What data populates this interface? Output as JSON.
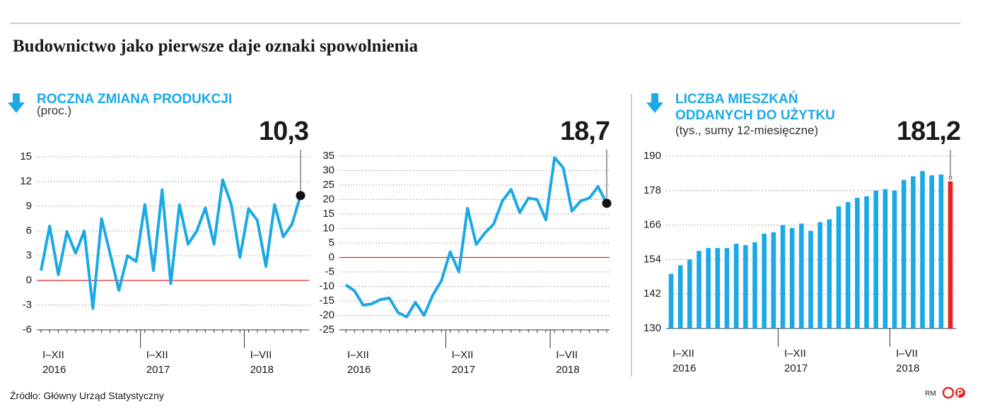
{
  "title": "Budownictwo jako pierwsze daje oznaki spowolnienia",
  "source": "Źródło: Główny Urząd Statystyczny",
  "credit": "RM",
  "chart_data": [
    {
      "type": "line",
      "title": [
        "ROCZNA ZMIANA PRODUKCJI"
      ],
      "subtitle": "(proc.)",
      "categories": [
        {
          "period": "I–XII",
          "year": "2016"
        },
        null,
        null,
        null,
        null,
        null,
        null,
        null,
        null,
        null,
        null,
        null,
        {
          "period": "I–XII",
          "year": "2017"
        },
        null,
        null,
        null,
        null,
        null,
        null,
        null,
        null,
        null,
        null,
        null,
        {
          "period": "I–VII",
          "year": "2018"
        },
        null,
        null,
        null,
        null,
        null,
        null
      ],
      "values": [
        1.2,
        6.6,
        0.7,
        5.9,
        3.3,
        6.0,
        -3.4,
        7.5,
        3.2,
        -1.2,
        3.0,
        2.3,
        9.2,
        1.2,
        11.0,
        -0.4,
        9.2,
        4.4,
        6.0,
        8.8,
        4.4,
        12.2,
        9.2,
        2.8,
        8.7,
        7.3,
        1.7,
        9.2,
        5.3,
        6.8,
        10.3
      ],
      "value_labels": [
        null,
        null,
        null,
        null,
        null,
        null,
        null,
        null,
        null,
        null,
        null,
        null,
        null,
        null,
        null,
        null,
        null,
        null,
        null,
        null,
        null,
        null,
        null,
        null,
        null,
        null,
        null,
        null,
        null,
        null,
        "10,3"
      ],
      "color": "#1ba9e6",
      "ylim": [
        -6,
        15
      ],
      "yticks": [
        -6,
        -3,
        0,
        3,
        6,
        9,
        12,
        15
      ],
      "grid": true,
      "zero_line_color": "#e52421"
    },
    {
      "type": "line",
      "categories": [
        {
          "period": "I–XII",
          "year": "2016"
        },
        null,
        null,
        null,
        null,
        null,
        null,
        null,
        null,
        null,
        null,
        null,
        {
          "period": "I–XII",
          "year": "2017"
        },
        null,
        null,
        null,
        null,
        null,
        null,
        null,
        null,
        null,
        null,
        null,
        {
          "period": "I–VII",
          "year": "2018"
        },
        null,
        null,
        null,
        null,
        null,
        null
      ],
      "values": [
        -9.5,
        -11.5,
        -16.5,
        -16,
        -14.5,
        -14,
        -19,
        -20.5,
        -15.5,
        -20,
        -13,
        -8,
        2,
        -5,
        17,
        4.5,
        8.5,
        11.5,
        19.5,
        23.5,
        15.5,
        20.5,
        20,
        13,
        34.5,
        31,
        16,
        19.5,
        20.5,
        24.5,
        18.7
      ],
      "value_labels": [
        null,
        null,
        null,
        null,
        null,
        null,
        null,
        null,
        null,
        null,
        null,
        null,
        null,
        null,
        null,
        null,
        null,
        null,
        null,
        null,
        null,
        null,
        null,
        null,
        null,
        null,
        null,
        null,
        null,
        null,
        "18,7"
      ],
      "color": "#1ba9e6",
      "ylim": [
        -25,
        35
      ],
      "yticks": [
        -25,
        -20,
        -15,
        -10,
        -5,
        0,
        5,
        10,
        15,
        20,
        25,
        30,
        35
      ],
      "grid": true,
      "zero_line_color": "#e52421"
    },
    {
      "type": "bar",
      "title": [
        "LICZBA MIESZKAŃ",
        "ODDANYCH DO UŻYTKU"
      ],
      "subtitle": "(tys., sumy 12-miesięczne)",
      "categories": [
        {
          "period": "I–XII",
          "year": "2016"
        },
        null,
        null,
        null,
        null,
        null,
        null,
        null,
        null,
        null,
        null,
        null,
        {
          "period": "I–XII",
          "year": "2017"
        },
        null,
        null,
        null,
        null,
        null,
        null,
        null,
        null,
        null,
        null,
        null,
        {
          "period": "I–VII",
          "year": "2018"
        },
        null,
        null,
        null,
        null,
        null,
        null
      ],
      "values": [
        149,
        152,
        154,
        157,
        158,
        158,
        158,
        159.5,
        159,
        160,
        163,
        163.5,
        166,
        165,
        166.5,
        164,
        167,
        168,
        172.5,
        174,
        175.5,
        176,
        178,
        178.5,
        178,
        181.7,
        183,
        184.8,
        183.3,
        183.6,
        181.2
      ],
      "value_labels": [
        null,
        null,
        null,
        null,
        null,
        null,
        null,
        null,
        null,
        null,
        null,
        null,
        null,
        null,
        null,
        null,
        null,
        null,
        null,
        null,
        null,
        null,
        null,
        null,
        null,
        null,
        null,
        null,
        null,
        null,
        "181,2"
      ],
      "color": "#1ba9e6",
      "highlight_last_color": "#e52421",
      "ylim": [
        130,
        190
      ],
      "yticks": [
        130,
        142,
        154,
        166,
        178,
        190
      ],
      "grid": true
    }
  ]
}
